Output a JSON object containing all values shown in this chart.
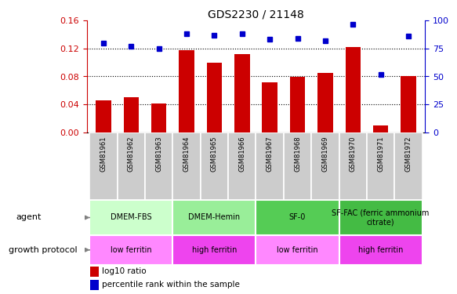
{
  "title": "GDS2230 / 21148",
  "samples": [
    "GSM81961",
    "GSM81962",
    "GSM81963",
    "GSM81964",
    "GSM81965",
    "GSM81966",
    "GSM81967",
    "GSM81968",
    "GSM81969",
    "GSM81970",
    "GSM81971",
    "GSM81972"
  ],
  "log10_ratio": [
    0.046,
    0.05,
    0.041,
    0.118,
    0.1,
    0.112,
    0.072,
    0.079,
    0.085,
    0.122,
    0.01,
    0.08
  ],
  "percentile_rank": [
    80,
    77,
    75,
    88,
    87,
    88,
    83,
    84,
    82,
    97,
    52,
    86
  ],
  "ylim_left": [
    0,
    0.16
  ],
  "ylim_right": [
    0,
    100
  ],
  "yticks_left": [
    0,
    0.04,
    0.08,
    0.12,
    0.16
  ],
  "yticks_right": [
    0,
    25,
    50,
    75,
    100
  ],
  "bar_color": "#cc0000",
  "dot_color": "#0000cc",
  "agent_groups": [
    {
      "label": "DMEM-FBS",
      "start": 0,
      "end": 3,
      "color": "#ccffcc"
    },
    {
      "label": "DMEM-Hemin",
      "start": 3,
      "end": 6,
      "color": "#99ee99"
    },
    {
      "label": "SF-0",
      "start": 6,
      "end": 9,
      "color": "#55cc55"
    },
    {
      "label": "SF-FAC (ferric ammonium\ncitrate)",
      "start": 9,
      "end": 12,
      "color": "#44bb44"
    }
  ],
  "protocol_groups": [
    {
      "label": "low ferritin",
      "start": 0,
      "end": 3,
      "color": "#ff88ff"
    },
    {
      "label": "high ferritin",
      "start": 3,
      "end": 6,
      "color": "#ee44ee"
    },
    {
      "label": "low ferritin",
      "start": 6,
      "end": 9,
      "color": "#ff88ff"
    },
    {
      "label": "high ferritin",
      "start": 9,
      "end": 12,
      "color": "#ee44ee"
    }
  ],
  "legend_labels": [
    "log10 ratio",
    "percentile rank within the sample"
  ],
  "agent_label": "agent",
  "protocol_label": "growth protocol",
  "sample_bg": "#cccccc"
}
